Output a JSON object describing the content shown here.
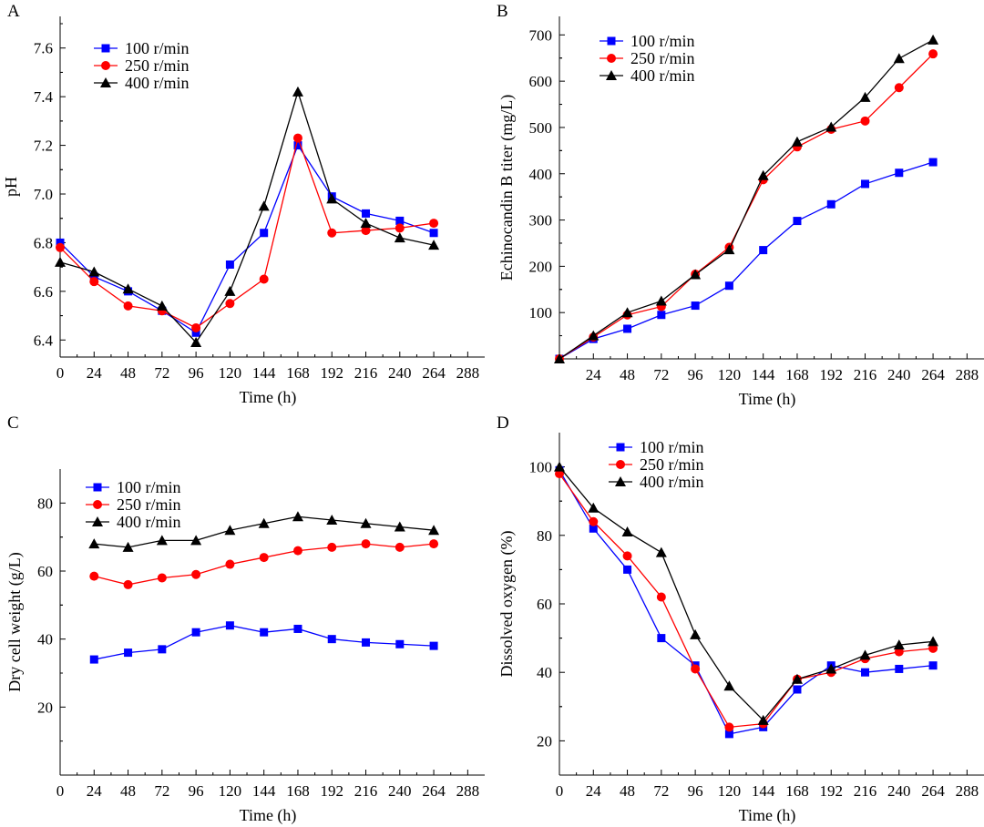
{
  "colors": {
    "series_100": "#0000ff",
    "series_250": "#ff0000",
    "series_400": "#000000"
  },
  "chart_data": [
    {
      "type": "line",
      "panel": "A",
      "xlabel": "Time (h)",
      "ylabel": "pH",
      "xlim": [
        0,
        300
      ],
      "ylim": [
        6.33,
        7.73
      ],
      "xticks": [
        0,
        24,
        48,
        72,
        96,
        120,
        144,
        168,
        192,
        216,
        240,
        264,
        288
      ],
      "yticks": [
        6.4,
        6.6,
        6.8,
        7.0,
        7.2,
        7.4,
        7.6
      ],
      "ytick_labels": [
        "6.4",
        "6.6",
        "6.8",
        "7.0",
        "7.2",
        "7.4",
        "7.6"
      ],
      "legend_position": "top-left",
      "series": [
        {
          "name": "100 r/min",
          "marker": "square",
          "color": "#0000ff",
          "x": [
            0,
            24,
            48,
            72,
            96,
            120,
            144,
            168,
            192,
            216,
            240,
            264
          ],
          "y": [
            6.8,
            6.66,
            6.6,
            6.52,
            6.43,
            6.71,
            6.84,
            7.2,
            6.99,
            6.92,
            6.89,
            6.84
          ]
        },
        {
          "name": "250 r/min",
          "marker": "circle",
          "color": "#ff0000",
          "x": [
            0,
            24,
            48,
            72,
            96,
            120,
            144,
            168,
            192,
            216,
            240,
            264
          ],
          "y": [
            6.78,
            6.64,
            6.54,
            6.52,
            6.45,
            6.55,
            6.65,
            7.23,
            6.84,
            6.85,
            6.86,
            6.88
          ]
        },
        {
          "name": "400 r/min",
          "marker": "triangle",
          "color": "#000000",
          "x": [
            0,
            24,
            48,
            72,
            96,
            120,
            144,
            168,
            192,
            216,
            240,
            264
          ],
          "y": [
            6.72,
            6.68,
            6.61,
            6.54,
            6.39,
            6.6,
            6.95,
            7.42,
            6.98,
            6.88,
            6.82,
            6.79
          ]
        }
      ]
    },
    {
      "type": "line",
      "panel": "B",
      "xlabel": "Time (h)",
      "ylabel": "Echinocandin B titer (mg/L)",
      "xlim": [
        0,
        300
      ],
      "ylim": [
        0,
        740
      ],
      "xticks": [
        24,
        48,
        72,
        96,
        120,
        144,
        168,
        192,
        216,
        240,
        264,
        288
      ],
      "yticks": [
        100,
        200,
        300,
        400,
        500,
        600,
        700
      ],
      "ytick_labels": [
        "100",
        "200",
        "300",
        "400",
        "500",
        "600",
        "700"
      ],
      "legend_position": "top-left",
      "series": [
        {
          "name": "100 r/min",
          "marker": "square",
          "color": "#0000ff",
          "x": [
            0,
            24,
            48,
            72,
            96,
            120,
            144,
            168,
            192,
            216,
            240,
            264
          ],
          "y": [
            0,
            43,
            65,
            95,
            115,
            158,
            235,
            298,
            334,
            378,
            402,
            425
          ]
        },
        {
          "name": "250 r/min",
          "marker": "circle",
          "color": "#ff0000",
          "x": [
            0,
            24,
            48,
            72,
            96,
            120,
            144,
            168,
            192,
            216,
            240,
            264
          ],
          "y": [
            0,
            47,
            95,
            113,
            183,
            241,
            387,
            458,
            496,
            514,
            586,
            659
          ]
        },
        {
          "name": "400 r/min",
          "marker": "triangle",
          "color": "#000000",
          "x": [
            0,
            24,
            48,
            72,
            96,
            120,
            144,
            168,
            192,
            216,
            240,
            264
          ],
          "y": [
            0,
            50,
            100,
            125,
            182,
            236,
            396,
            469,
            501,
            565,
            649,
            689
          ]
        }
      ]
    },
    {
      "type": "line",
      "panel": "C",
      "xlabel": "Time (h)",
      "ylabel": "Dry cell weight (g/L)",
      "xlim": [
        0,
        300
      ],
      "ylim": [
        0,
        90
      ],
      "xticks": [
        0,
        24,
        48,
        72,
        96,
        120,
        144,
        168,
        192,
        216,
        240,
        264,
        288
      ],
      "yticks": [
        20,
        40,
        60,
        80
      ],
      "ytick_labels": [
        "20",
        "40",
        "60",
        "80"
      ],
      "legend_position": "top-left",
      "series": [
        {
          "name": "100 r/min",
          "marker": "square",
          "color": "#0000ff",
          "x": [
            24,
            48,
            72,
            96,
            120,
            144,
            168,
            192,
            216,
            240,
            264
          ],
          "y": [
            34,
            36,
            37,
            42,
            44,
            42,
            43,
            40,
            39,
            38.5,
            38
          ]
        },
        {
          "name": "250 r/min",
          "marker": "circle",
          "color": "#ff0000",
          "x": [
            24,
            48,
            72,
            96,
            120,
            144,
            168,
            192,
            216,
            240,
            264
          ],
          "y": [
            58.5,
            56,
            58,
            59,
            62,
            64,
            66,
            67,
            68,
            67,
            68
          ]
        },
        {
          "name": "400 r/min",
          "marker": "triangle",
          "color": "#000000",
          "x": [
            24,
            48,
            72,
            96,
            120,
            144,
            168,
            192,
            216,
            240,
            264
          ],
          "y": [
            68,
            67,
            69,
            69,
            72,
            74,
            76,
            75,
            74,
            73,
            72
          ]
        }
      ]
    },
    {
      "type": "line",
      "panel": "D",
      "xlabel": "Time (h)",
      "ylabel": "Dissolved oxygen (%)",
      "xlim": [
        0,
        300
      ],
      "ylim": [
        10,
        110
      ],
      "xticks": [
        0,
        24,
        48,
        72,
        96,
        120,
        144,
        168,
        192,
        216,
        240,
        264,
        288
      ],
      "yticks": [
        20,
        40,
        60,
        80,
        100
      ],
      "ytick_labels": [
        "20",
        "40",
        "60",
        "80",
        "100"
      ],
      "legend_position": "top-left",
      "series": [
        {
          "name": "100 r/min",
          "marker": "square",
          "color": "#0000ff",
          "x": [
            0,
            24,
            48,
            72,
            96,
            120,
            144,
            168,
            192,
            216,
            240,
            264
          ],
          "y": [
            99,
            82,
            70,
            50,
            42,
            22,
            24,
            35,
            42,
            40,
            41,
            42
          ]
        },
        {
          "name": "250 r/min",
          "marker": "circle",
          "color": "#ff0000",
          "x": [
            0,
            24,
            48,
            72,
            96,
            120,
            144,
            168,
            192,
            216,
            240,
            264
          ],
          "y": [
            98,
            84,
            74,
            62,
            41,
            24,
            25,
            38,
            40,
            44,
            46,
            47
          ]
        },
        {
          "name": "400 r/min",
          "marker": "triangle",
          "color": "#000000",
          "x": [
            0,
            24,
            48,
            72,
            96,
            120,
            144,
            168,
            192,
            216,
            240,
            264
          ],
          "y": [
            100,
            88,
            81,
            75,
            51,
            36,
            26,
            38,
            41,
            45,
            48,
            49
          ]
        }
      ]
    }
  ]
}
